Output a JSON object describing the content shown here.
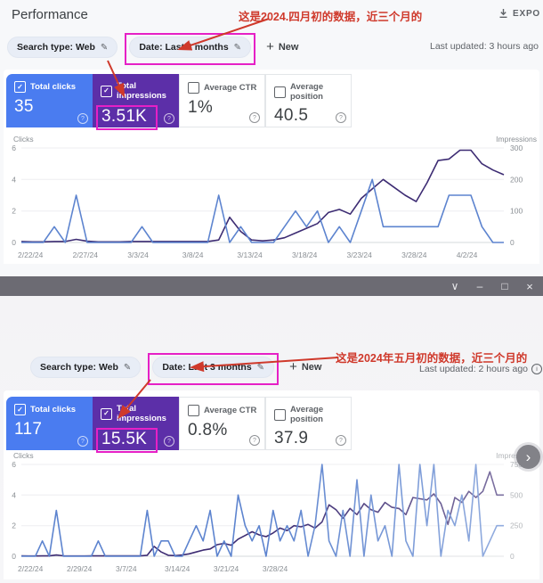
{
  "colors": {
    "clicks_card_bg": "#4a7cf0",
    "impressions_card_bg": "#5c2fa8",
    "clicks_line": "#5d84cf",
    "impressions_line": "#3d2c73",
    "annotation_red": "#cf392b",
    "highlight_magenta": "#e620c6",
    "titlebar_bg": "#6c6b73",
    "chip_bg": "#e8edf6"
  },
  "icons": {
    "check": "✓",
    "pencil": "✎",
    "plus": "+",
    "question": "?",
    "info": "i",
    "chevron_right": "›"
  },
  "titlebar": {
    "chevron_down_icon": "∨",
    "minimize_icon": "–",
    "maximize_icon": "□",
    "close_icon": "×"
  },
  "section_april": {
    "page_title": "Performance",
    "export_button_label": "EXPO",
    "filters": {
      "search_type_chip": "Search type: Web",
      "date_chip": "Date: Last 3 months",
      "new_button": "New"
    },
    "last_updated": "Last updated: 3 hours ago",
    "annotation_text": "这是2024.四月初的数据，近三个月的",
    "metric_cards": [
      {
        "label": "Total clicks",
        "value": "35",
        "selected": true
      },
      {
        "label": "Total impressions",
        "value": "3.51K",
        "selected": true,
        "highlighted": true
      },
      {
        "label": "Average CTR",
        "value": "1%",
        "selected": false
      },
      {
        "label": "Average position",
        "value": "40.5",
        "selected": false
      }
    ]
  },
  "section_may": {
    "filters": {
      "search_type_chip": "Search type: Web",
      "date_chip": "Date: Last 3 months",
      "new_button": "New"
    },
    "last_updated": "Last updated: 2 hours ago",
    "annotation_text": "这是2024年五月初的数据，近三个月的",
    "metric_cards": [
      {
        "label": "Total clicks",
        "value": "117",
        "selected": true
      },
      {
        "label": "Total impressions",
        "value": "15.5K",
        "selected": true,
        "highlighted": true
      },
      {
        "label": "Average CTR",
        "value": "0.8%",
        "selected": false
      },
      {
        "label": "Average position",
        "value": "37.9",
        "selected": false
      }
    ]
  },
  "chart_data": [
    {
      "type": "line",
      "ylabel_left": "Clicks",
      "ylabel_right": "Impressions",
      "ylim_left": [
        0,
        6
      ],
      "yticks_left": [
        0,
        2,
        4,
        6
      ],
      "ylim_right": [
        0,
        300
      ],
      "yticks_right": [
        0,
        100,
        200,
        300
      ],
      "x_ticks": [
        {
          "index": 0,
          "label": "2/22/24"
        },
        {
          "index": 5,
          "label": "2/27/24"
        },
        {
          "index": 10,
          "label": "3/3/24"
        },
        {
          "index": 15,
          "label": "3/8/24"
        },
        {
          "index": 20,
          "label": "3/13/24"
        },
        {
          "index": 25,
          "label": "3/18/24"
        },
        {
          "index": 30,
          "label": "3/23/24"
        },
        {
          "index": 35,
          "label": "3/28/24"
        },
        {
          "index": 40,
          "label": "4/2/24"
        }
      ],
      "series": [
        {
          "name": "Clicks",
          "axis": "left",
          "color": "#5d84cf",
          "values": [
            0,
            0,
            0,
            1,
            0,
            3,
            0,
            0,
            0,
            0,
            0,
            1,
            0,
            0,
            0,
            0,
            0,
            0,
            3,
            0,
            1,
            0,
            0,
            0,
            1,
            2,
            1,
            2,
            0,
            1,
            0,
            2,
            4,
            1,
            1,
            1,
            1,
            1,
            1,
            3,
            3,
            3,
            1,
            0,
            0
          ]
        },
        {
          "name": "Impressions",
          "axis": "right",
          "color": "#3d2c73",
          "values": [
            3,
            2,
            2,
            3,
            3,
            10,
            4,
            2,
            2,
            2,
            3,
            3,
            3,
            3,
            3,
            3,
            3,
            3,
            8,
            80,
            35,
            8,
            5,
            8,
            15,
            30,
            45,
            60,
            95,
            105,
            90,
            140,
            170,
            200,
            175,
            150,
            130,
            190,
            260,
            265,
            293,
            293,
            250,
            230,
            215
          ]
        }
      ]
    },
    {
      "type": "line",
      "ylabel_left": "Clicks",
      "ylabel_right": "Impressions",
      "ylim_left": [
        0,
        6
      ],
      "yticks_left": [
        0,
        2,
        4,
        6
      ],
      "ylim_right": [
        0,
        750
      ],
      "yticks_right": [
        0,
        250,
        500,
        750
      ],
      "x_ticks": [
        {
          "index": 0,
          "label": "2/22/24"
        },
        {
          "index": 7,
          "label": "2/29/24"
        },
        {
          "index": 14,
          "label": "3/7/24"
        },
        {
          "index": 21,
          "label": "3/14/24"
        },
        {
          "index": 28,
          "label": "3/21/24"
        },
        {
          "index": 35,
          "label": "3/28/24"
        }
      ],
      "series": [
        {
          "name": "Clicks",
          "axis": "left",
          "color": "#5d84cf",
          "values": [
            0,
            0,
            0,
            1,
            0,
            3,
            0,
            0,
            0,
            0,
            0,
            1,
            0,
            0,
            0,
            0,
            0,
            0,
            3,
            0,
            1,
            1,
            0,
            0,
            1,
            2,
            1,
            3,
            0,
            1,
            0,
            4,
            2,
            1,
            2,
            0,
            3,
            1,
            2,
            1,
            3,
            0,
            2,
            6,
            1,
            0,
            3,
            0,
            5,
            0,
            4,
            1,
            2,
            0,
            6,
            1,
            0,
            6,
            2,
            6,
            0,
            3,
            2,
            4,
            1,
            6,
            0,
            1,
            2,
            2
          ]
        },
        {
          "name": "Impressions",
          "axis": "right",
          "color": "#3d2c73",
          "values": [
            3,
            2,
            2,
            3,
            3,
            10,
            4,
            2,
            2,
            2,
            3,
            3,
            3,
            3,
            3,
            3,
            3,
            3,
            8,
            80,
            35,
            8,
            5,
            10,
            20,
            35,
            50,
            60,
            95,
            105,
            90,
            140,
            170,
            200,
            175,
            160,
            190,
            230,
            210,
            250,
            240,
            260,
            230,
            280,
            420,
            380,
            310,
            390,
            340,
            430,
            380,
            360,
            440,
            400,
            390,
            340,
            480,
            470,
            460,
            510,
            430,
            260,
            480,
            440,
            530,
            480,
            530,
            690,
            500,
            500
          ]
        }
      ]
    }
  ]
}
